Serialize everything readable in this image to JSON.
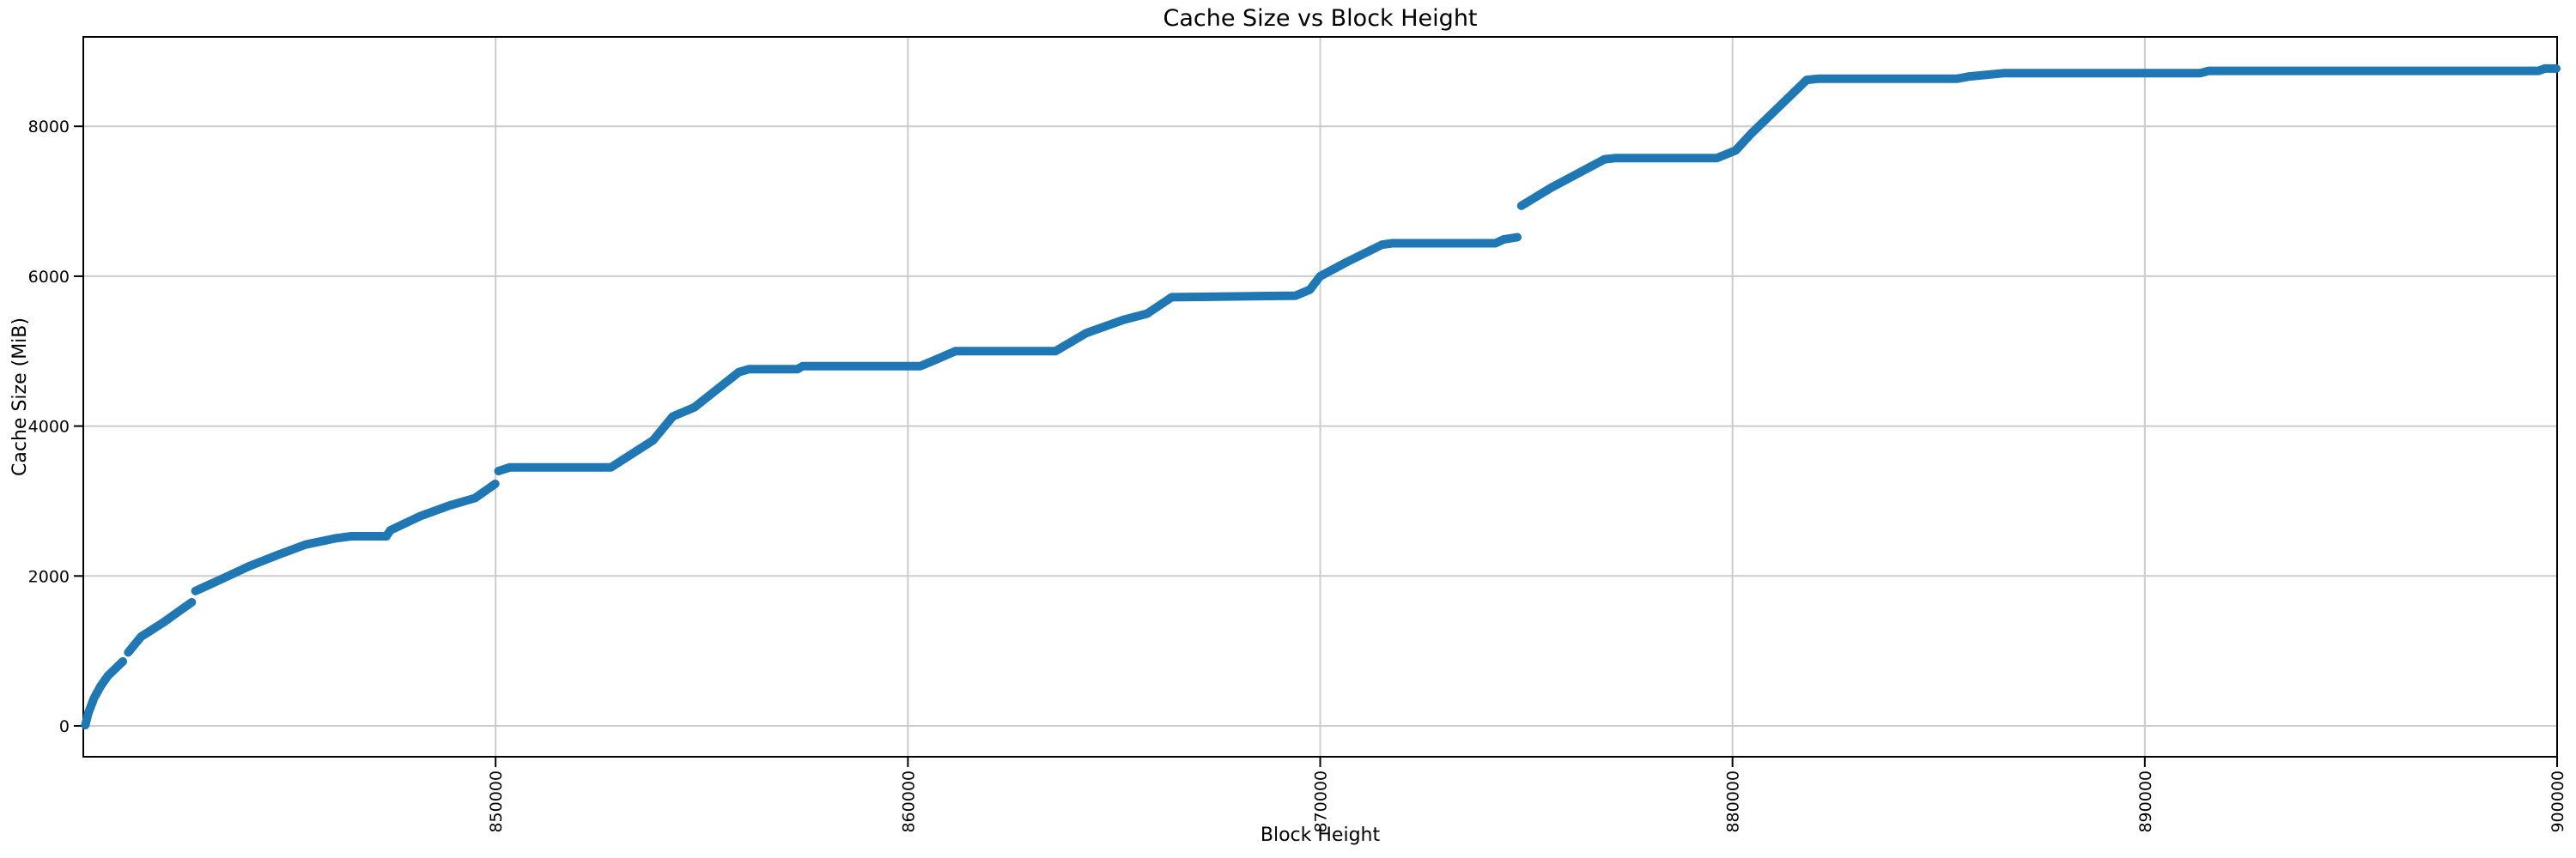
{
  "figure": {
    "background": "#ffffff",
    "text_color": "#000000"
  },
  "chart_data": {
    "type": "line",
    "title": "Cache Size vs Block Height",
    "xlabel": "Block Height",
    "ylabel": "Cache Size (MiB)",
    "xlim": [
      840000,
      900000
    ],
    "ylim": [
      -412,
      9193
    ],
    "x_ticks": [
      850000,
      860000,
      870000,
      880000,
      890000,
      900000
    ],
    "x_tick_labels": [
      "850000",
      "860000",
      "870000",
      "880000",
      "890000",
      "900000"
    ],
    "y_ticks": [
      0,
      2000,
      4000,
      6000,
      8000
    ],
    "y_tick_labels": [
      "0",
      "2000",
      "4000",
      "6000",
      "8000"
    ],
    "grid": true,
    "legend_position": "none",
    "x_tick_rotation_deg": 90,
    "line_color": "#1f77b4",
    "line_width": 10,
    "grid_color": "#cccccc",
    "spine_color": "#000000",
    "series": [
      {
        "name": "cache-size-vs-block-height",
        "segments": [
          [
            [
              840050,
              10
            ],
            [
              840120,
              170
            ],
            [
              840260,
              370
            ],
            [
              840420,
              530
            ],
            [
              840600,
              670
            ],
            [
              840960,
              860
            ]
          ],
          [
            [
              841090,
              980
            ],
            [
              841400,
              1190
            ],
            [
              841940,
              1380
            ],
            [
              842300,
              1520
            ],
            [
              842630,
              1650
            ]
          ],
          [
            [
              842720,
              1800
            ],
            [
              843320,
              1950
            ],
            [
              844020,
              2130
            ],
            [
              844710,
              2280
            ],
            [
              845400,
              2420
            ],
            [
              846100,
              2500
            ],
            [
              846500,
              2530
            ],
            [
              847350,
              2530
            ],
            [
              847450,
              2610
            ],
            [
              848180,
              2800
            ],
            [
              848880,
              2940
            ],
            [
              849500,
              3040
            ],
            [
              849990,
              3230
            ]
          ],
          [
            [
              850070,
              3400
            ],
            [
              850350,
              3450
            ],
            [
              852800,
              3450
            ],
            [
              853820,
              3810
            ],
            [
              854300,
              4130
            ],
            [
              854820,
              4250
            ],
            [
              855900,
              4720
            ],
            [
              856150,
              4760
            ],
            [
              857320,
              4760
            ],
            [
              857450,
              4800
            ],
            [
              860300,
              4800
            ],
            [
              860650,
              4880
            ],
            [
              861150,
              5000
            ],
            [
              863580,
              5000
            ],
            [
              864320,
              5240
            ],
            [
              865240,
              5420
            ],
            [
              865800,
              5500
            ],
            [
              866400,
              5720
            ],
            [
              869400,
              5740
            ],
            [
              869750,
              5820
            ],
            [
              870000,
              6000
            ],
            [
              870650,
              6190
            ],
            [
              871500,
              6420
            ],
            [
              871750,
              6440
            ],
            [
              874250,
              6440
            ],
            [
              874450,
              6490
            ],
            [
              874780,
              6520
            ]
          ],
          [
            [
              874880,
              6940
            ],
            [
              875600,
              7180
            ],
            [
              876900,
              7560
            ],
            [
              877150,
              7575
            ],
            [
              879620,
              7575
            ],
            [
              880080,
              7680
            ],
            [
              880450,
              7900
            ],
            [
              881800,
              8620
            ],
            [
              882100,
              8635
            ],
            [
              885450,
              8635
            ],
            [
              885750,
              8665
            ],
            [
              886600,
              8710
            ],
            [
              891350,
              8710
            ],
            [
              891550,
              8740
            ],
            [
              899550,
              8740
            ],
            [
              899700,
              8770
            ],
            [
              899980,
              8770
            ]
          ]
        ]
      }
    ]
  }
}
